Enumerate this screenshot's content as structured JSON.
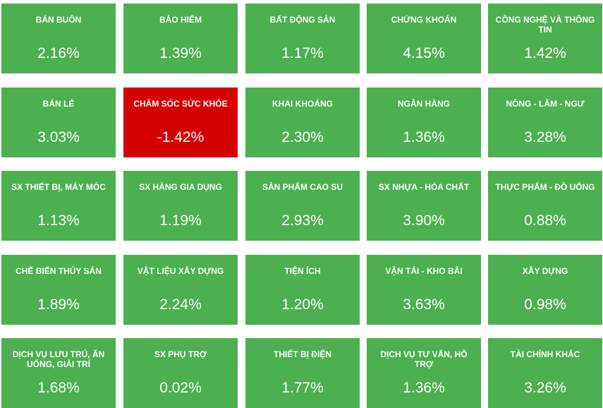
{
  "colors": {
    "positive": "#4caf50",
    "negative": "#d50000",
    "text": "#ffffff"
  },
  "sectors": [
    {
      "name": "BÁN BUÔN",
      "change": "2.16%"
    },
    {
      "name": "BẢO HIỂM",
      "change": "1.39%"
    },
    {
      "name": "BẤT ĐỘNG SẢN",
      "change": "1.17%"
    },
    {
      "name": "CHỨNG KHOÁN",
      "change": "4.15%"
    },
    {
      "name": "CÔNG NGHỆ VÀ THÔNG TIN",
      "change": "1.42%"
    },
    {
      "name": "BÁN LẺ",
      "change": "3.03%"
    },
    {
      "name": "CHĂM SÓC SỨC KHỎE",
      "change": "-1.42%"
    },
    {
      "name": "KHAI KHOÁNG",
      "change": "2.30%"
    },
    {
      "name": "NGÂN HÀNG",
      "change": "1.36%"
    },
    {
      "name": "NÔNG - LÂM - NGƯ",
      "change": "3.28%"
    },
    {
      "name": "SX THIẾT BỊ, MÁY MÓC",
      "change": "1.13%"
    },
    {
      "name": "SX HÀNG GIA DỤNG",
      "change": "1.19%"
    },
    {
      "name": "SẢN PHẨM CAO SU",
      "change": "2.93%"
    },
    {
      "name": "SX NHỰA - HÓA CHẤT",
      "change": "3.90%"
    },
    {
      "name": "THỰC PHẨM - ĐỒ UỐNG",
      "change": "0.88%"
    },
    {
      "name": "CHẾ BIẾN THỦY SẢN",
      "change": "1.89%"
    },
    {
      "name": "VẬT LIỆU XÂY DỰNG",
      "change": "2.24%"
    },
    {
      "name": "TIỆN ÍCH",
      "change": "1.20%"
    },
    {
      "name": "VẬN TẢI - KHO BÃI",
      "change": "3.63%"
    },
    {
      "name": "XÂY DỰNG",
      "change": "0.98%"
    },
    {
      "name": "DỊCH VỤ LƯU TRÚ, ĂN UỐNG, GIẢI TRÍ",
      "change": "1.68%"
    },
    {
      "name": "SX PHỤ TRỢ",
      "change": "0.02%"
    },
    {
      "name": "THIẾT BỊ ĐIỆN",
      "change": "1.77%"
    },
    {
      "name": "DỊCH VỤ TƯ VẤN, HỖ TRỢ",
      "change": "1.36%"
    },
    {
      "name": "TÀI CHÍNH KHÁC",
      "change": "3.26%"
    }
  ]
}
